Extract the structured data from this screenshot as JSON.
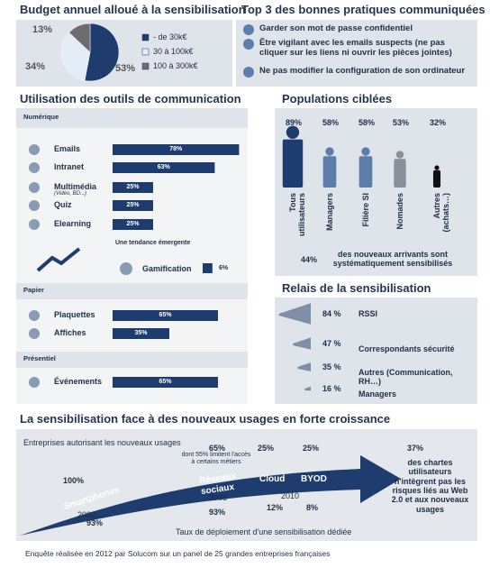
{
  "budget": {
    "title": "Budget annuel alloué à la sensibilisation",
    "categories": [
      "- de 30k€",
      "30 à 100k€",
      "100 à 300k€"
    ],
    "values": [
      53,
      34,
      13
    ],
    "value_labels": [
      "53%",
      "34%",
      "13%"
    ],
    "colors": [
      "#1f3c6e",
      "#e4ecf7",
      "#6d6d6d"
    ]
  },
  "practices": {
    "title": "Top 3 des bonnes pratiques communiquées",
    "items": [
      "Garder son mot de passe confidentiel",
      "Être vigilant avec les emails suspects (ne pas cliquer sur les liens ni ouvrir les pièces jointes)",
      "Ne pas modifier la configuration de son ordinateur"
    ]
  },
  "tools": {
    "title": "Utilisation des outils de communication",
    "color": "#1f3c6e",
    "groups": [
      {
        "name": "Numérique",
        "rows": [
          {
            "label": "Emails",
            "value": 78,
            "value_label": "78%"
          },
          {
            "label": "Intranet",
            "value": 63,
            "value_label": "63%"
          },
          {
            "label": "Multimédia",
            "sublabel": "(Vidéo, BD...)",
            "value": 25,
            "value_label": "25%"
          },
          {
            "label": "Quiz",
            "value": 25,
            "value_label": "25%"
          },
          {
            "label": "Elearning",
            "value": 25,
            "value_label": "25%"
          }
        ]
      },
      {
        "name": "Papier",
        "rows": [
          {
            "label": "Plaquettes",
            "value": 65,
            "value_label": "65%"
          },
          {
            "label": "Affiches",
            "value": 35,
            "value_label": "35%"
          }
        ]
      },
      {
        "name": "Présentiel",
        "rows": [
          {
            "label": "Événements",
            "value": 65,
            "value_label": "65%"
          }
        ]
      }
    ],
    "emerging": {
      "title": "Une tendance émergente",
      "label": "Gamification",
      "value": 6,
      "value_label": "6%"
    }
  },
  "populations": {
    "title": "Populations ciblées",
    "categories": [
      "Tous utilisateurs",
      "Managers",
      "Filière SI",
      "Nomades",
      "Autres (achats…)"
    ],
    "values": [
      89,
      58,
      58,
      53,
      32
    ],
    "value_labels": [
      "89%",
      "58%",
      "58%",
      "53%",
      "32%"
    ],
    "colors": [
      "#1f3c6e",
      "#5d7eaa",
      "#5d7eaa",
      "#8a8f99",
      "#111111"
    ],
    "note": {
      "value": 44,
      "value_label": "44%",
      "text": "des nouveaux arrivants sont systématiquement sensibilisés"
    }
  },
  "relais": {
    "title": "Relais de la sensibilisation",
    "categories": [
      "RSSI",
      "Correspondants sécurité",
      "Autres (Communication, RH…)",
      "Managers"
    ],
    "values": [
      84,
      47,
      35,
      16
    ],
    "value_labels": [
      "84 %",
      "47 %",
      "35 %",
      "16 %"
    ],
    "color": "#7f8fa6"
  },
  "trend": {
    "title": "La sensibilisation face à des nouveaux usages en forte croissance",
    "subtitle": "Entreprises autorisant les nouveaux usages",
    "stages": [
      {
        "name": "Smartphones",
        "year": "2002",
        "authorized": "100%",
        "deployed": "93%"
      },
      {
        "name": "Réseaux sociaux",
        "year": "2008",
        "authorized": "65%",
        "note": "dont 55% limitent l'accès à certains métiers",
        "deployed": "93%"
      },
      {
        "name": "Cloud",
        "year": "2010",
        "authorized": "25%",
        "deployed": "12%"
      },
      {
        "name": "BYOD",
        "authorized": "25%",
        "deployed": "8%"
      }
    ],
    "deployment_label": "Taux de déploiement d'une sensibilisation dédiée",
    "charter": {
      "value": "37%",
      "text": "des chartes utilisateurs n'intègrent pas les risques liés au Web 2.0 et aux nouveaux usages"
    }
  },
  "footer": "Enquête réalisée en 2012 par Solucom sur un panel de 25 grandes entreprises françaises"
}
